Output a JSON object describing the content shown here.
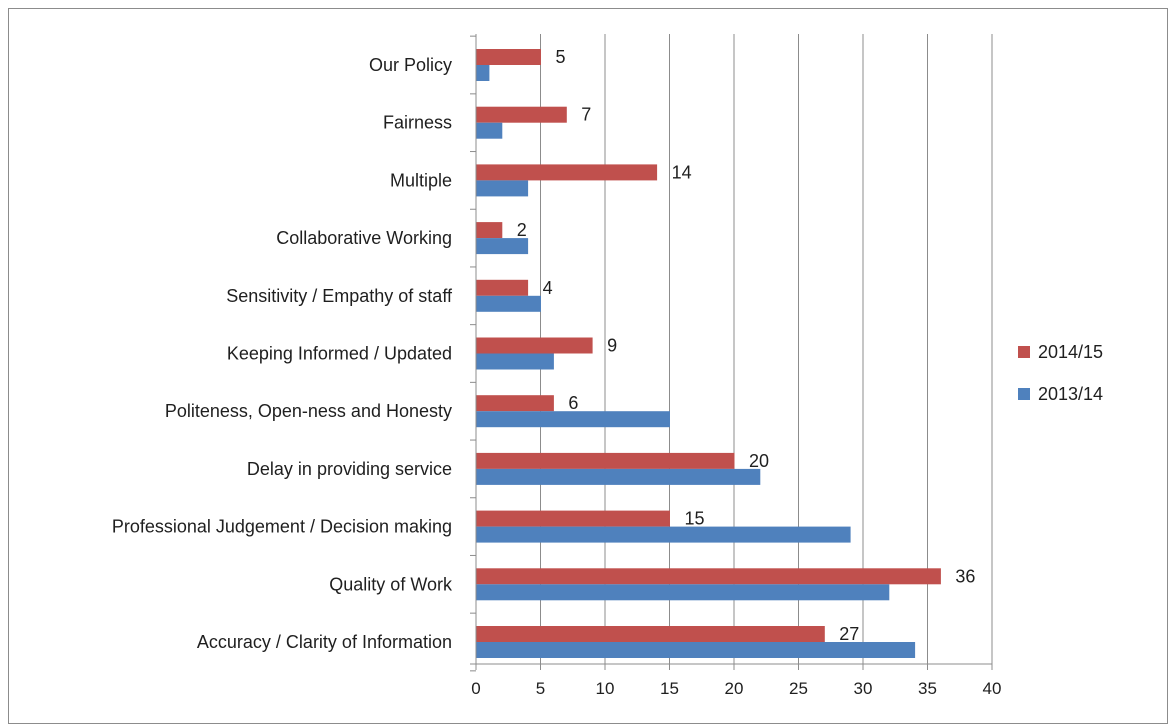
{
  "chart_data": {
    "type": "bar",
    "orientation": "horizontal",
    "categories": [
      "Our Policy",
      "Fairness",
      "Multiple",
      "Collaborative Working",
      "Sensitivity / Empathy of staff",
      "Keeping Informed / Updated",
      "Politeness, Open-ness and Honesty",
      "Delay in  providing service",
      "Professional Judgement / Decision making",
      "Quality of Work",
      "Accuracy / Clarity of Information"
    ],
    "series": [
      {
        "name": "2014/15",
        "color": "#c0504d",
        "values": [
          5,
          7,
          14,
          2,
          4,
          9,
          6,
          20,
          15,
          36,
          27
        ],
        "show_labels": true
      },
      {
        "name": "2013/14",
        "color": "#4f81bd",
        "values": [
          1,
          2,
          4,
          4,
          5,
          6,
          15,
          22,
          29,
          32,
          34
        ],
        "show_labels": false
      }
    ],
    "xlim": [
      0,
      40
    ],
    "x_ticks": [
      0,
      5,
      10,
      15,
      20,
      25,
      30,
      35,
      40
    ],
    "grid": "vertical",
    "legend_position": "right",
    "title": "",
    "xlabel": "",
    "ylabel": ""
  }
}
